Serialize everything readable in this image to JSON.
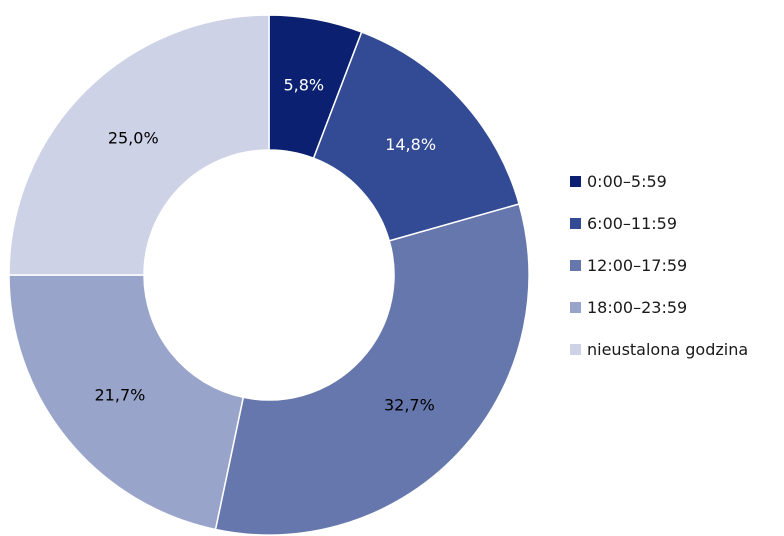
{
  "chart_data": {
    "type": "pie",
    "variant": "donut",
    "title": "",
    "categories": [
      "0:00–5:59",
      "6:00–11:59",
      "12:00–17:59",
      "18:00–23:59",
      "nieustalona godzina"
    ],
    "values": [
      5.8,
      14.8,
      32.7,
      21.7,
      25.0
    ],
    "data_labels": [
      "5,8%",
      "14,8%",
      "32,7%",
      "21,7%",
      "25,0%"
    ],
    "colors": [
      "#0b2070",
      "#334a95",
      "#6677ad",
      "#98a4ca",
      "#cdd2e6"
    ],
    "label_colors": [
      "#ffffff",
      "#ffffff",
      "#000000",
      "#000000",
      "#000000"
    ],
    "legend_position": "right",
    "start_angle": "top",
    "direction": "clockwise"
  }
}
